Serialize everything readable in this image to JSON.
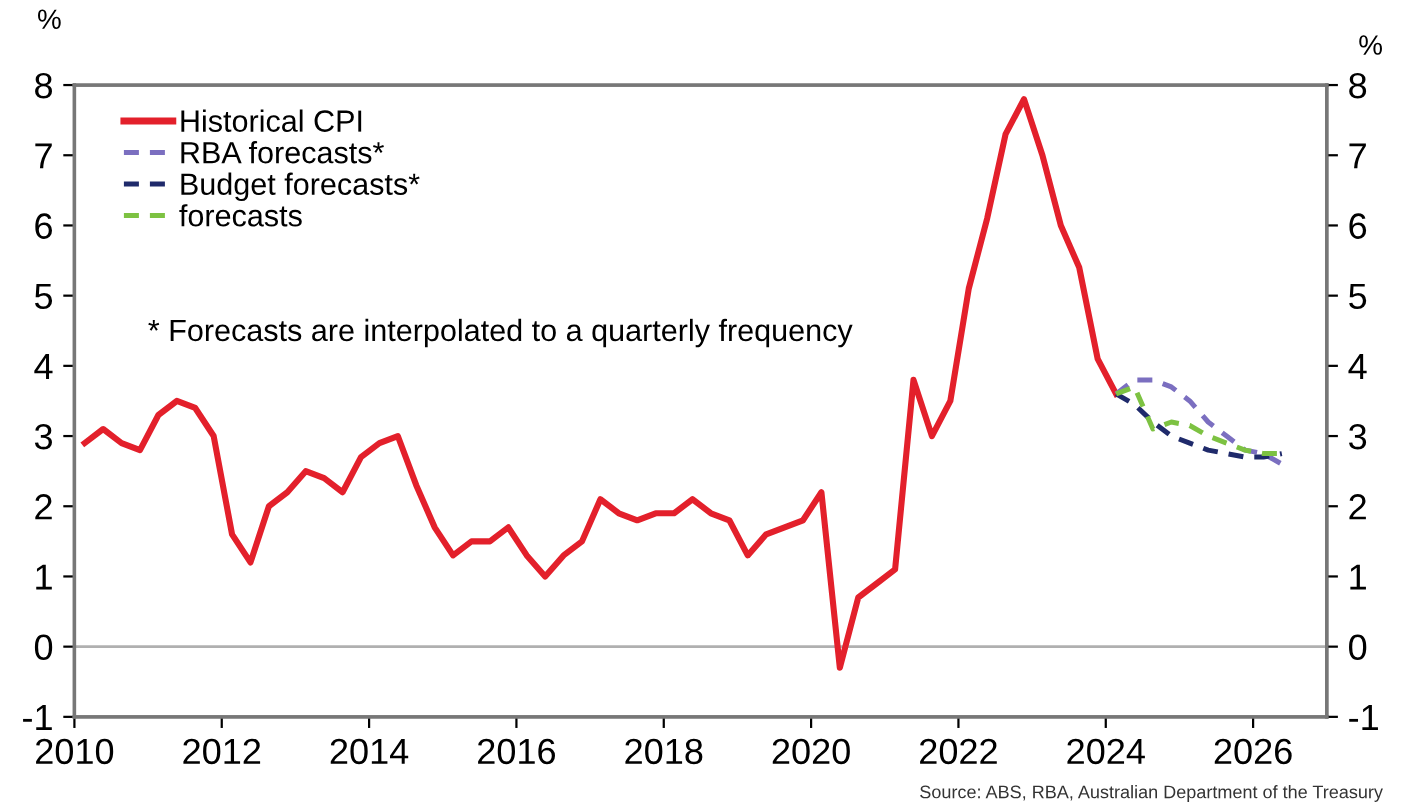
{
  "chart_data": {
    "type": "line",
    "ylabel": "%",
    "y2label": "%",
    "xlim": [
      2010,
      2027
    ],
    "xticks": [
      2010,
      2012,
      2014,
      2016,
      2018,
      2020,
      2022,
      2024,
      2026
    ],
    "ylim": [
      -1,
      8
    ],
    "yticks": [
      -1,
      0,
      1,
      2,
      3,
      4,
      5,
      6,
      7,
      8
    ],
    "y2lim": [
      -1,
      8
    ],
    "y2ticks": [
      -1,
      0,
      1,
      2,
      3,
      4,
      5,
      6,
      7,
      8
    ],
    "grid": false,
    "legend": "top left",
    "line_style": "solid",
    "marker": "none",
    "ref_lines": [
      {
        "axis": "y",
        "value": 0,
        "color": "#b0b0b0"
      }
    ],
    "annotations": [
      "* Forecasts are interpolated to a quarterly frequency",
      "Source: ABS, RBA, Australian Department of the Treasury"
    ],
    "series": [
      {
        "name": "Historical CPI",
        "color": "#e3202b",
        "x": [
          2010.14,
          2010.39,
          2010.64,
          2010.89,
          2011.14,
          2011.39,
          2011.64,
          2011.89,
          2012.14,
          2012.39,
          2012.64,
          2012.89,
          2013.14,
          2013.39,
          2013.64,
          2013.89,
          2014.14,
          2014.39,
          2014.64,
          2014.89,
          2015.14,
          2015.39,
          2015.64,
          2015.89,
          2016.14,
          2016.39,
          2016.64,
          2016.89,
          2017.14,
          2017.39,
          2017.64,
          2017.89,
          2018.14,
          2018.39,
          2018.64,
          2018.89,
          2019.14,
          2019.39,
          2019.64,
          2019.89,
          2020.14,
          2020.39,
          2020.64,
          2020.89,
          2021.14,
          2021.39,
          2021.64,
          2021.89,
          2022.14,
          2022.39,
          2022.64,
          2022.89,
          2023.14,
          2023.39,
          2023.64,
          2023.89,
          2024.14
        ],
        "values": [
          2.9,
          3.1,
          2.9,
          2.8,
          3.3,
          3.5,
          3.4,
          3.0,
          1.6,
          1.2,
          2.0,
          2.2,
          2.5,
          2.4,
          2.2,
          2.7,
          2.9,
          3.0,
          2.3,
          1.7,
          1.3,
          1.5,
          1.5,
          1.7,
          1.3,
          1.0,
          1.3,
          1.5,
          2.1,
          1.9,
          1.8,
          1.9,
          1.9,
          2.1,
          1.9,
          1.8,
          1.3,
          1.6,
          1.7,
          1.8,
          2.2,
          -0.3,
          0.7,
          0.9,
          1.1,
          3.8,
          3.0,
          3.5,
          5.1,
          6.1,
          7.3,
          7.8,
          7.0,
          6.0,
          5.4,
          4.1,
          3.6
        ]
      },
      {
        "name": "RBA forecasts*",
        "color": "#7b6fc0",
        "line_style": "dashed",
        "x": [
          2024.14,
          2024.39,
          2024.64,
          2024.89,
          2025.14,
          2025.39,
          2025.64,
          2025.89,
          2026.14,
          2026.39
        ],
        "values": [
          3.6,
          3.8,
          3.8,
          3.7,
          3.5,
          3.2,
          3.0,
          2.8,
          2.75,
          2.6
        ]
      },
      {
        "name": "Budget forecasts*",
        "color": "#1f2a6b",
        "line_style": "dashed",
        "x": [
          2024.14,
          2024.39,
          2024.64,
          2024.89,
          2025.14,
          2025.39,
          2025.64,
          2025.89,
          2026.14,
          2026.39
        ],
        "values": [
          3.6,
          3.45,
          3.2,
          3.0,
          2.9,
          2.8,
          2.75,
          2.7,
          2.7,
          2.75
        ]
      },
      {
        "name": "forecasts",
        "color": "#7dc242",
        "line_style": "dashed",
        "x": [
          2024.14,
          2024.39,
          2024.64,
          2024.89,
          2025.14,
          2025.39,
          2025.64,
          2025.89,
          2026.14,
          2026.39
        ],
        "values": [
          3.6,
          3.7,
          3.1,
          3.2,
          3.15,
          3.0,
          2.9,
          2.8,
          2.75,
          2.75
        ]
      }
    ]
  }
}
